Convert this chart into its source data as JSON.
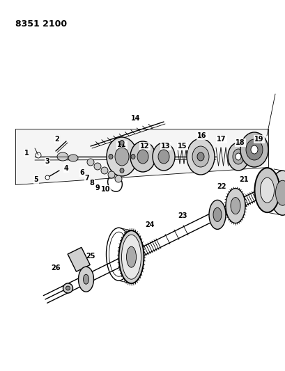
{
  "title": "8351 2100",
  "bg_color": "#ffffff",
  "line_color": "#000000",
  "title_fontsize": 9,
  "fig_width": 4.1,
  "fig_height": 5.33,
  "dpi": 100
}
